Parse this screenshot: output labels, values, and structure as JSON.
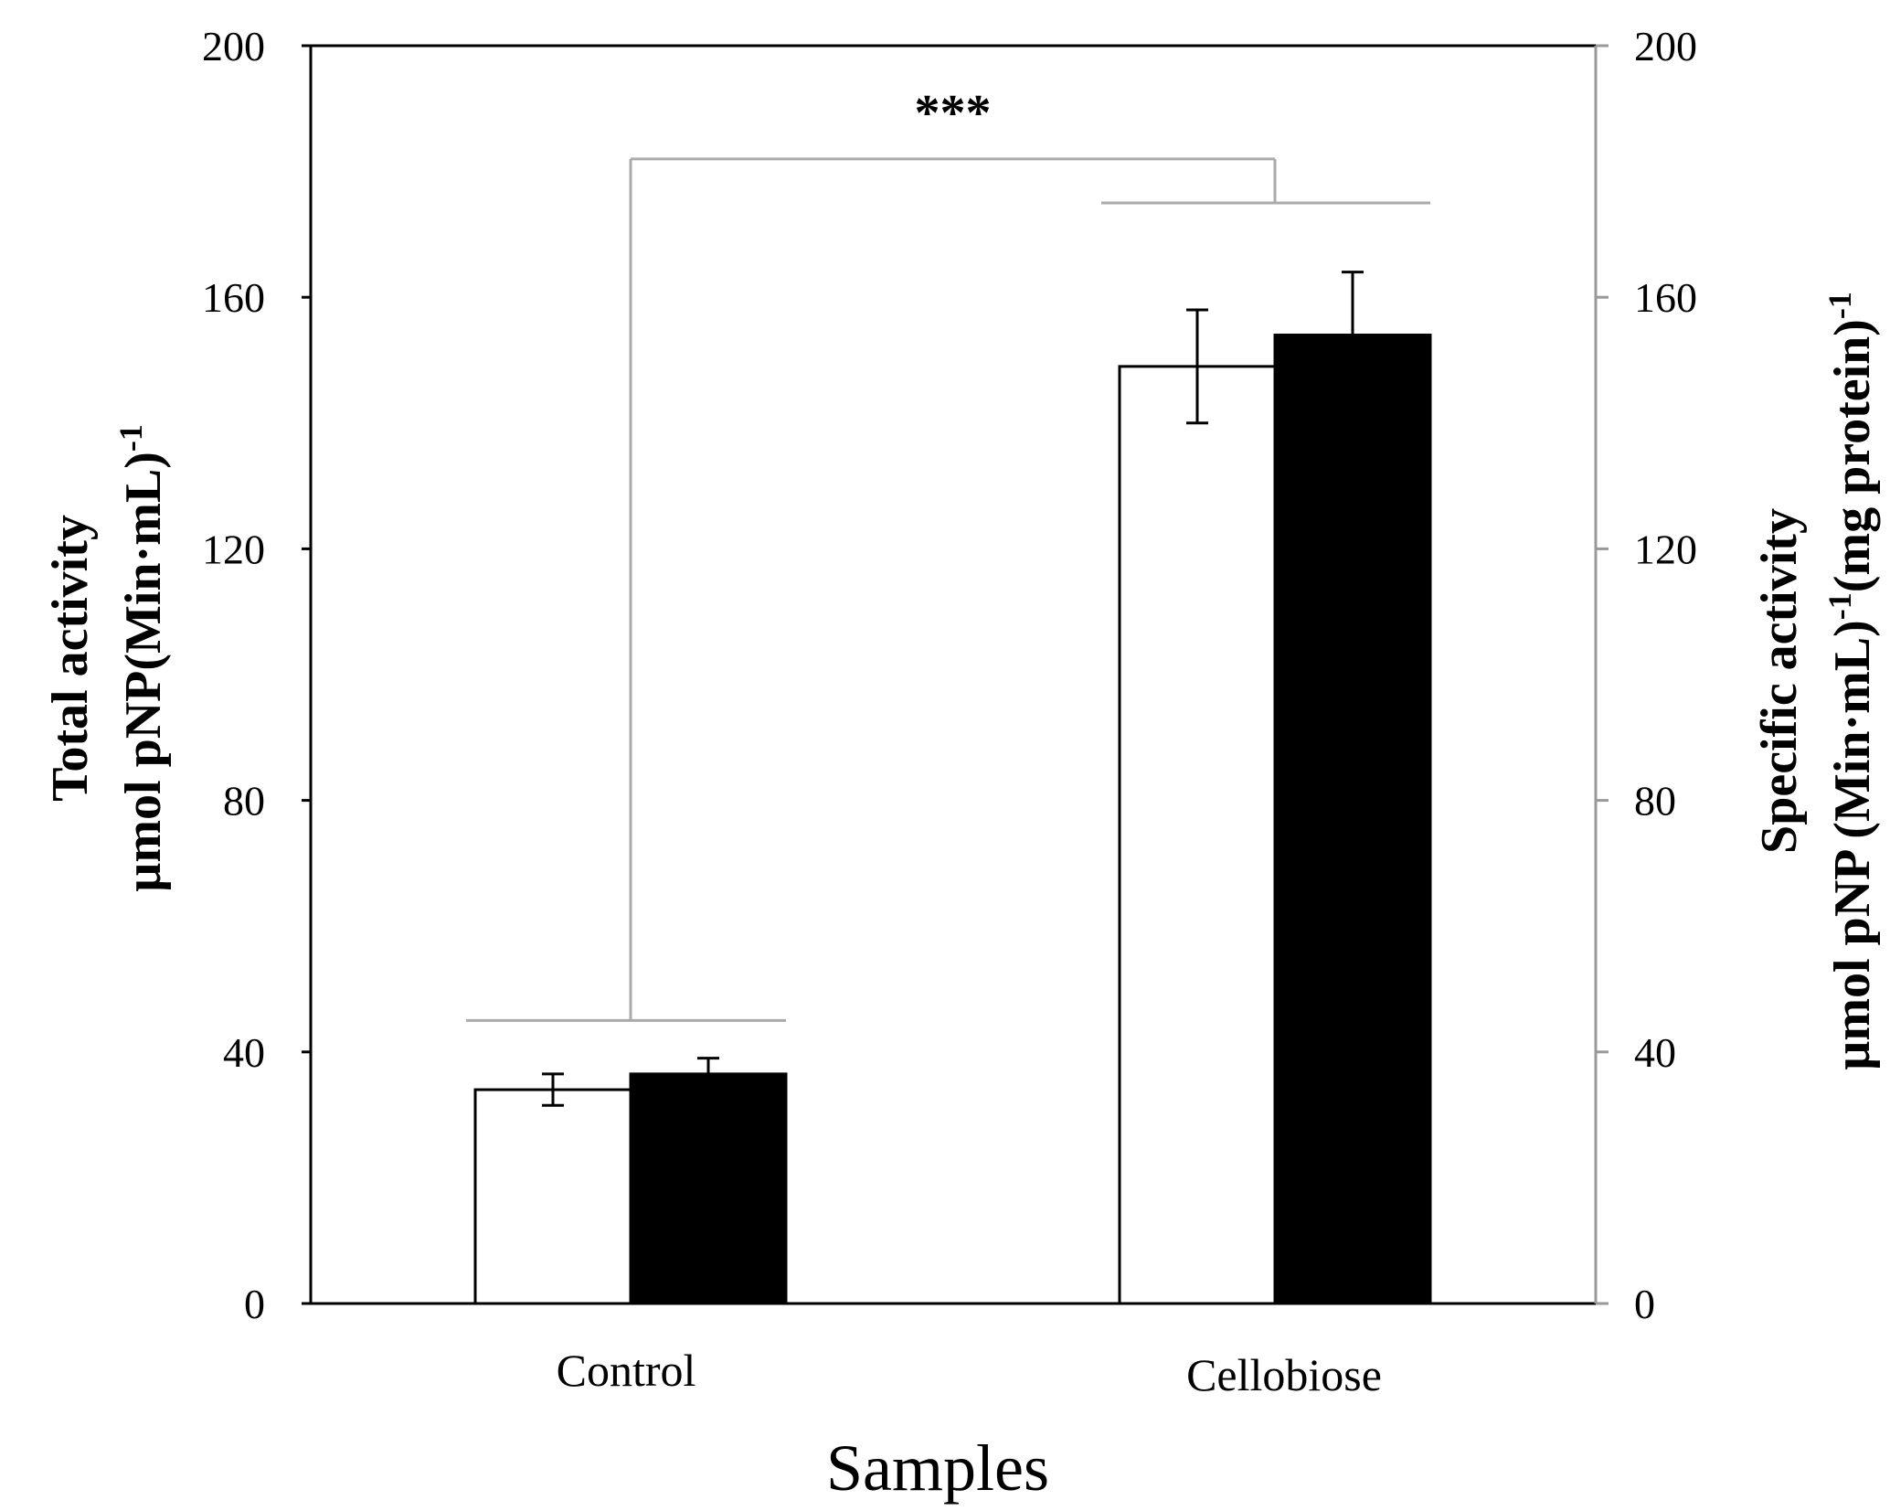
{
  "chart_data": {
    "type": "bar",
    "categories": [
      "Control",
      "Cellobiose"
    ],
    "series": [
      {
        "name": "Total activity",
        "axis": "left",
        "color": "#ffffff",
        "values": [
          34,
          149
        ],
        "errors": [
          2.5,
          9
        ]
      },
      {
        "name": "Specific activity",
        "axis": "right",
        "color": "#000000",
        "values": [
          36.5,
          154
        ],
        "errors": [
          2.5,
          10
        ]
      }
    ],
    "xlabel": "Samples",
    "ylabel_left": {
      "line1": "Total activity",
      "line2_main": "µmol pNP(Min·mL)",
      "line2_sup": "-1"
    },
    "ylabel_right": {
      "line1": "Specific activity",
      "line2_a": "µmol pNP (Min·mL)",
      "line2_sup1": "-1",
      "line2_b": "(mg protein)",
      "line2_sup2": "-1"
    },
    "ylim_left": [
      0,
      200
    ],
    "ylim_right": [
      0,
      200
    ],
    "yticks_left": [
      0,
      40,
      80,
      120,
      160,
      200
    ],
    "yticks_right": [
      0,
      40,
      80,
      120,
      160,
      200
    ],
    "significance": {
      "label": "***",
      "between": [
        "Control",
        "Cellobiose"
      ],
      "bracket_level": 182,
      "control_bar_level": 45,
      "cellobiose_bar_level": 175
    },
    "grid": false
  }
}
